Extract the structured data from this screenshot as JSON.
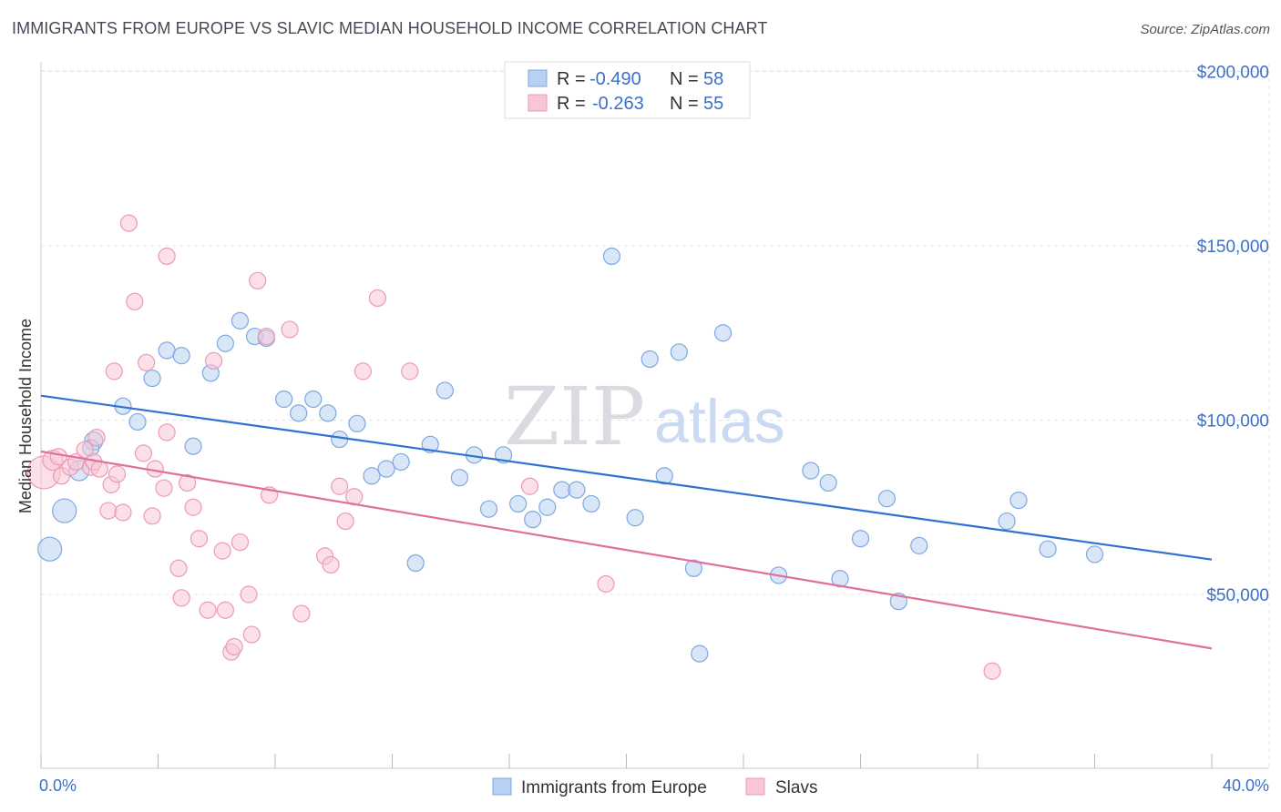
{
  "header": {
    "title": "IMMIGRANTS FROM EUROPE VS SLAVIC MEDIAN HOUSEHOLD INCOME CORRELATION CHART",
    "source": "Source: ZipAtlas.com"
  },
  "watermark": {
    "zip": "ZIP",
    "atlas": "atlas"
  },
  "legend_top": {
    "rows": [
      {
        "r_label": "R =",
        "r_value": "-0.490",
        "n_label": "N =",
        "n_value": "58"
      },
      {
        "r_label": "R =",
        "r_value": "-0.263",
        "n_label": "N =",
        "n_value": "55"
      }
    ]
  },
  "chart_data": {
    "type": "scatter",
    "title": "IMMIGRANTS FROM EUROPE VS SLAVIC MEDIAN HOUSEHOLD INCOME CORRELATION CHART",
    "xlabel": "",
    "ylabel": "Median Household Income",
    "xlim": [
      0,
      40
    ],
    "ylim": [
      0,
      210000
    ],
    "x_tick_labels": [
      "0.0%",
      "40.0%"
    ],
    "y_ticks": [
      {
        "value": 50000,
        "label": "$50,000"
      },
      {
        "value": 100000,
        "label": "$100,000"
      },
      {
        "value": 150000,
        "label": "$150,000"
      },
      {
        "value": 200000,
        "label": "$200,000"
      }
    ],
    "grid": true,
    "legend_placement": "bottom-center",
    "colors": {
      "blue_fill": "#b8d1f3",
      "blue_stroke": "#7ea8e0",
      "blue_line": "#2f72cf",
      "pink_fill": "#f8c7d6",
      "pink_stroke": "#ec9ab4",
      "pink_line": "#e0709a"
    },
    "series": [
      {
        "name": "Immigrants from Europe",
        "color": "blue",
        "r": -0.49,
        "n": 58,
        "trend": {
          "x": [
            0,
            40
          ],
          "y": [
            107000,
            60000
          ]
        },
        "points": [
          {
            "x": 0.3,
            "y": 63000,
            "s": 13
          },
          {
            "x": 0.8,
            "y": 74000,
            "s": 13
          },
          {
            "x": 1.3,
            "y": 85500,
            "s": 11
          },
          {
            "x": 1.8,
            "y": 94000,
            "s": 10
          },
          {
            "x": 1.7,
            "y": 92000,
            "s": 9
          },
          {
            "x": 2.8,
            "y": 104000,
            "s": 9
          },
          {
            "x": 3.3,
            "y": 99500,
            "s": 9
          },
          {
            "x": 3.8,
            "y": 112000,
            "s": 9
          },
          {
            "x": 4.3,
            "y": 120000,
            "s": 9
          },
          {
            "x": 4.8,
            "y": 118500,
            "s": 9
          },
          {
            "x": 5.2,
            "y": 92500,
            "s": 9
          },
          {
            "x": 5.8,
            "y": 113500,
            "s": 9
          },
          {
            "x": 6.3,
            "y": 122000,
            "s": 9
          },
          {
            "x": 6.8,
            "y": 128500,
            "s": 9
          },
          {
            "x": 7.3,
            "y": 124000,
            "s": 9
          },
          {
            "x": 7.7,
            "y": 123500,
            "s": 9
          },
          {
            "x": 8.3,
            "y": 106000,
            "s": 9
          },
          {
            "x": 8.8,
            "y": 102000,
            "s": 9
          },
          {
            "x": 9.3,
            "y": 106000,
            "s": 9
          },
          {
            "x": 9.8,
            "y": 102000,
            "s": 9
          },
          {
            "x": 10.2,
            "y": 94500,
            "s": 9
          },
          {
            "x": 10.8,
            "y": 99000,
            "s": 9
          },
          {
            "x": 11.3,
            "y": 84000,
            "s": 9
          },
          {
            "x": 11.8,
            "y": 86000,
            "s": 9
          },
          {
            "x": 12.3,
            "y": 88000,
            "s": 9
          },
          {
            "x": 12.8,
            "y": 59000,
            "s": 9
          },
          {
            "x": 13.3,
            "y": 93000,
            "s": 9
          },
          {
            "x": 13.8,
            "y": 108500,
            "s": 9
          },
          {
            "x": 14.3,
            "y": 83500,
            "s": 9
          },
          {
            "x": 14.8,
            "y": 90000,
            "s": 9
          },
          {
            "x": 15.3,
            "y": 74500,
            "s": 9
          },
          {
            "x": 15.8,
            "y": 90000,
            "s": 9
          },
          {
            "x": 16.3,
            "y": 76000,
            "s": 9
          },
          {
            "x": 16.8,
            "y": 71500,
            "s": 9
          },
          {
            "x": 17.3,
            "y": 75000,
            "s": 9
          },
          {
            "x": 17.8,
            "y": 80000,
            "s": 9
          },
          {
            "x": 18.3,
            "y": 80000,
            "s": 9
          },
          {
            "x": 18.8,
            "y": 76000,
            "s": 9
          },
          {
            "x": 19.5,
            "y": 147000,
            "s": 9
          },
          {
            "x": 20.3,
            "y": 72000,
            "s": 9
          },
          {
            "x": 20.8,
            "y": 117500,
            "s": 9
          },
          {
            "x": 21.3,
            "y": 84000,
            "s": 9
          },
          {
            "x": 21.8,
            "y": 119500,
            "s": 9
          },
          {
            "x": 22.3,
            "y": 57500,
            "s": 9
          },
          {
            "x": 22.5,
            "y": 33000,
            "s": 9
          },
          {
            "x": 23.3,
            "y": 125000,
            "s": 9
          },
          {
            "x": 25.2,
            "y": 55500,
            "s": 9
          },
          {
            "x": 26.3,
            "y": 85500,
            "s": 9
          },
          {
            "x": 26.9,
            "y": 82000,
            "s": 9
          },
          {
            "x": 27.3,
            "y": 54500,
            "s": 9
          },
          {
            "x": 28.0,
            "y": 66000,
            "s": 9
          },
          {
            "x": 28.9,
            "y": 77500,
            "s": 9
          },
          {
            "x": 29.3,
            "y": 48000,
            "s": 9
          },
          {
            "x": 30.0,
            "y": 64000,
            "s": 9
          },
          {
            "x": 33.0,
            "y": 71000,
            "s": 9
          },
          {
            "x": 33.4,
            "y": 77000,
            "s": 9
          },
          {
            "x": 34.4,
            "y": 63000,
            "s": 9
          },
          {
            "x": 36.0,
            "y": 61500,
            "s": 9
          }
        ]
      },
      {
        "name": "Slavs",
        "color": "pink",
        "r": -0.263,
        "n": 55,
        "trend": {
          "x": [
            0,
            40
          ],
          "y": [
            91000,
            34500
          ]
        },
        "points": [
          {
            "x": 0.1,
            "y": 85000,
            "s": 18
          },
          {
            "x": 0.4,
            "y": 88500,
            "s": 11
          },
          {
            "x": 0.6,
            "y": 89500,
            "s": 9
          },
          {
            "x": 0.7,
            "y": 84000,
            "s": 9
          },
          {
            "x": 1.0,
            "y": 86500,
            "s": 9
          },
          {
            "x": 1.2,
            "y": 88000,
            "s": 9
          },
          {
            "x": 1.5,
            "y": 91500,
            "s": 9
          },
          {
            "x": 1.7,
            "y": 86500,
            "s": 9
          },
          {
            "x": 1.8,
            "y": 88000,
            "s": 9
          },
          {
            "x": 1.9,
            "y": 95000,
            "s": 9
          },
          {
            "x": 2.0,
            "y": 86000,
            "s": 9
          },
          {
            "x": 2.3,
            "y": 74000,
            "s": 9
          },
          {
            "x": 2.4,
            "y": 81500,
            "s": 9
          },
          {
            "x": 2.5,
            "y": 114000,
            "s": 9
          },
          {
            "x": 2.8,
            "y": 73500,
            "s": 9
          },
          {
            "x": 2.6,
            "y": 84500,
            "s": 9
          },
          {
            "x": 3.0,
            "y": 156500,
            "s": 9
          },
          {
            "x": 3.2,
            "y": 134000,
            "s": 9
          },
          {
            "x": 3.5,
            "y": 90500,
            "s": 9
          },
          {
            "x": 3.6,
            "y": 116500,
            "s": 9
          },
          {
            "x": 3.8,
            "y": 72500,
            "s": 9
          },
          {
            "x": 3.9,
            "y": 86000,
            "s": 9
          },
          {
            "x": 4.2,
            "y": 80500,
            "s": 9
          },
          {
            "x": 4.3,
            "y": 96500,
            "s": 9
          },
          {
            "x": 4.3,
            "y": 147000,
            "s": 9
          },
          {
            "x": 4.7,
            "y": 57500,
            "s": 9
          },
          {
            "x": 4.8,
            "y": 49000,
            "s": 9
          },
          {
            "x": 5.0,
            "y": 82000,
            "s": 9
          },
          {
            "x": 5.2,
            "y": 75000,
            "s": 9
          },
          {
            "x": 5.4,
            "y": 66000,
            "s": 9
          },
          {
            "x": 5.7,
            "y": 45500,
            "s": 9
          },
          {
            "x": 5.9,
            "y": 117000,
            "s": 9
          },
          {
            "x": 6.2,
            "y": 62500,
            "s": 9
          },
          {
            "x": 6.3,
            "y": 45500,
            "s": 9
          },
          {
            "x": 6.5,
            "y": 33500,
            "s": 9
          },
          {
            "x": 6.6,
            "y": 35000,
            "s": 9
          },
          {
            "x": 6.8,
            "y": 65000,
            "s": 9
          },
          {
            "x": 7.1,
            "y": 50000,
            "s": 9
          },
          {
            "x": 7.2,
            "y": 38500,
            "s": 9
          },
          {
            "x": 7.4,
            "y": 140000,
            "s": 9
          },
          {
            "x": 7.8,
            "y": 78500,
            "s": 9
          },
          {
            "x": 7.7,
            "y": 124000,
            "s": 9
          },
          {
            "x": 8.5,
            "y": 126000,
            "s": 9
          },
          {
            "x": 8.9,
            "y": 44500,
            "s": 9
          },
          {
            "x": 9.7,
            "y": 61000,
            "s": 9
          },
          {
            "x": 9.9,
            "y": 58500,
            "s": 9
          },
          {
            "x": 10.2,
            "y": 81000,
            "s": 9
          },
          {
            "x": 10.4,
            "y": 71000,
            "s": 9
          },
          {
            "x": 10.7,
            "y": 78000,
            "s": 9
          },
          {
            "x": 11.0,
            "y": 114000,
            "s": 9
          },
          {
            "x": 11.5,
            "y": 135000,
            "s": 9
          },
          {
            "x": 12.6,
            "y": 114000,
            "s": 9
          },
          {
            "x": 16.7,
            "y": 81000,
            "s": 9
          },
          {
            "x": 19.3,
            "y": 53000,
            "s": 9
          },
          {
            "x": 32.5,
            "y": 28000,
            "s": 9
          }
        ]
      }
    ]
  },
  "bottom_legend": {
    "items": [
      {
        "label": "Immigrants from Europe"
      },
      {
        "label": "Slavs"
      }
    ]
  }
}
